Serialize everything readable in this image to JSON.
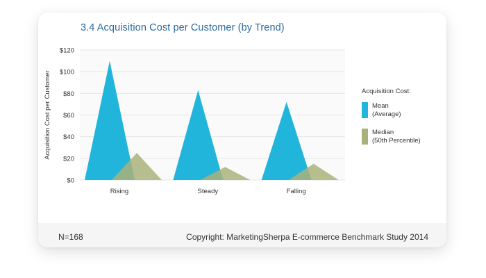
{
  "chart_data": {
    "type": "area",
    "title": "3.4 Acquisition Cost per Customer (by Trend)",
    "ylabel": "Acquisition Cost per Customer",
    "xlabel": "",
    "categories": [
      "Rising",
      "Steady",
      "Falling"
    ],
    "ylim": [
      0,
      120
    ],
    "yticks": [
      "$0",
      "$20",
      "$40",
      "$60",
      "$80",
      "$100",
      "$120"
    ],
    "series": [
      {
        "name": "Mean (Average)",
        "name_lines": [
          "Mean",
          "(Average)"
        ],
        "color": "#22b5dc",
        "values": [
          110,
          83,
          72
        ]
      },
      {
        "name": "Median (50th Percentile)",
        "name_lines": [
          "Median",
          "(50th Percentile)"
        ],
        "color": "#a9b27a",
        "values": [
          25,
          12,
          15
        ]
      }
    ],
    "legend_title": "Acquisition Cost:",
    "legend_position": "right",
    "grid": true
  },
  "footer": {
    "n": "N=168",
    "copyright": "Copyright: MarketingSherpa E-commerce Benchmark Study 2014"
  }
}
